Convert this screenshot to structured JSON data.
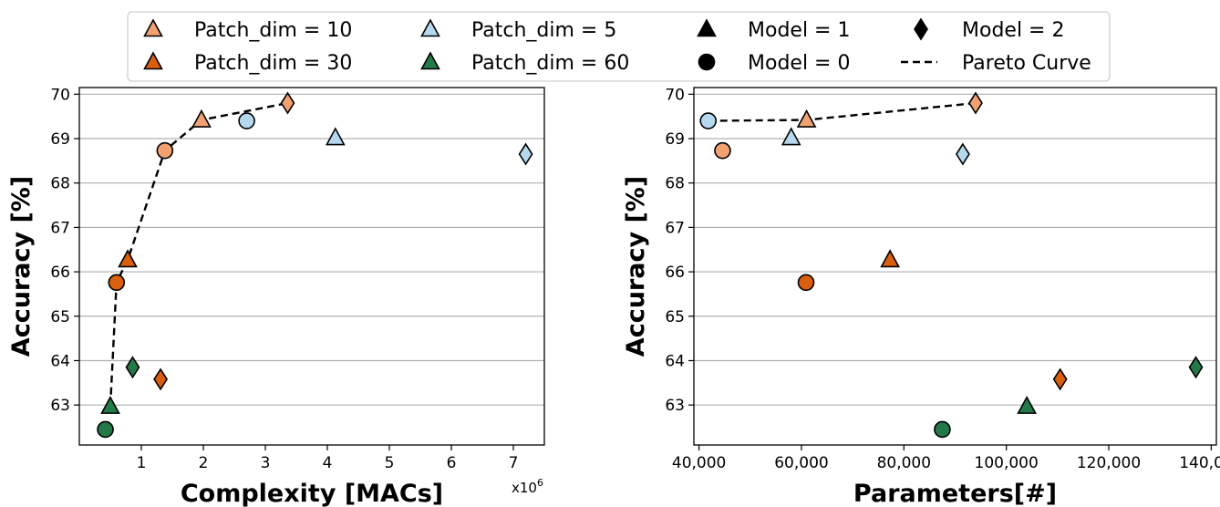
{
  "colors": {
    "patch_dim_10": "#f2a272",
    "patch_dim_30": "#d95f0e",
    "patch_dim_5": "#b5d8ee",
    "patch_dim_60": "#237a48",
    "grid": "#b0b0b0",
    "pareto": "#000000"
  },
  "legend": {
    "items": [
      {
        "label": "Patch_dim = 10",
        "marker": "triangle",
        "color_key": "patch_dim_10"
      },
      {
        "label": "Patch_dim = 30",
        "marker": "triangle",
        "color_key": "patch_dim_30"
      },
      {
        "label": "Patch_dim = 5",
        "marker": "triangle",
        "color_key": "patch_dim_5"
      },
      {
        "label": "Patch_dim = 60",
        "marker": "triangle",
        "color_key": "patch_dim_60"
      },
      {
        "label": "Model = 1",
        "marker": "triangle",
        "color_key": "black"
      },
      {
        "label": "Model = 0",
        "marker": "circle",
        "color_key": "black"
      },
      {
        "label": "Model = 2",
        "marker": "diamond",
        "color_key": "black"
      },
      {
        "label": "Pareto Curve",
        "marker": "dashed-line",
        "color_key": "pareto"
      }
    ]
  },
  "chart_data": [
    {
      "type": "scatter",
      "xlabel": "Complexity [MACs]",
      "ylabel": "Accuracy [%]",
      "x_multiplier_label": "x10",
      "x_multiplier_exp": "6",
      "xlim": [
        0.0,
        7.5
      ],
      "ylim": [
        62.1,
        70.15
      ],
      "x_ticks": [
        1,
        2,
        3,
        4,
        5,
        6,
        7
      ],
      "x_tick_labels": [
        "1",
        "2",
        "3",
        "4",
        "5",
        "6",
        "7"
      ],
      "y_ticks": [
        63,
        64,
        65,
        66,
        67,
        68,
        69,
        70
      ],
      "y_tick_labels": [
        "63",
        "64",
        "65",
        "66",
        "67",
        "68",
        "69",
        "70"
      ],
      "grid": "horizontal",
      "points": [
        {
          "x": 0.42,
          "y": 62.45,
          "patch_dim": 60,
          "model": 0
        },
        {
          "x": 0.5,
          "y": 62.97,
          "patch_dim": 60,
          "model": 1
        },
        {
          "x": 0.86,
          "y": 63.85,
          "patch_dim": 60,
          "model": 2
        },
        {
          "x": 1.31,
          "y": 63.58,
          "patch_dim": 30,
          "model": 2
        },
        {
          "x": 0.6,
          "y": 65.76,
          "patch_dim": 30,
          "model": 0
        },
        {
          "x": 0.78,
          "y": 66.27,
          "patch_dim": 30,
          "model": 1
        },
        {
          "x": 1.38,
          "y": 68.73,
          "patch_dim": 10,
          "model": 0
        },
        {
          "x": 1.97,
          "y": 69.42,
          "patch_dim": 10,
          "model": 1
        },
        {
          "x": 3.36,
          "y": 69.8,
          "patch_dim": 10,
          "model": 2
        },
        {
          "x": 2.7,
          "y": 69.4,
          "patch_dim": 5,
          "model": 0
        },
        {
          "x": 4.13,
          "y": 69.02,
          "patch_dim": 5,
          "model": 1
        },
        {
          "x": 7.2,
          "y": 68.65,
          "patch_dim": 5,
          "model": 2
        }
      ],
      "pareto": {
        "name": "Pareto Curve",
        "x": [
          0.5,
          0.6,
          0.78,
          1.38,
          1.97,
          3.36
        ],
        "y": [
          62.97,
          65.76,
          66.27,
          68.73,
          69.42,
          69.8
        ]
      }
    },
    {
      "type": "scatter",
      "xlabel": "Parameters[#]",
      "ylabel": "Accuracy [%]",
      "xlim": [
        39000,
        141000
      ],
      "ylim": [
        62.1,
        70.15
      ],
      "x_ticks": [
        40000,
        60000,
        80000,
        100000,
        120000,
        140000
      ],
      "x_tick_labels": [
        "40,000",
        "60,000",
        "80,000",
        "100,000",
        "120,000",
        "140,000"
      ],
      "y_ticks": [
        63,
        64,
        65,
        66,
        67,
        68,
        69,
        70
      ],
      "y_tick_labels": [
        "63",
        "64",
        "65",
        "66",
        "67",
        "68",
        "69",
        "70"
      ],
      "grid": "horizontal",
      "points": [
        {
          "x": 41800,
          "y": 69.4,
          "patch_dim": 5,
          "model": 0
        },
        {
          "x": 44600,
          "y": 68.73,
          "patch_dim": 10,
          "model": 0
        },
        {
          "x": 58000,
          "y": 69.02,
          "patch_dim": 5,
          "model": 1
        },
        {
          "x": 61000,
          "y": 69.42,
          "patch_dim": 10,
          "model": 1
        },
        {
          "x": 91500,
          "y": 68.65,
          "patch_dim": 5,
          "model": 2
        },
        {
          "x": 94000,
          "y": 69.8,
          "patch_dim": 10,
          "model": 2
        },
        {
          "x": 60900,
          "y": 65.76,
          "patch_dim": 30,
          "model": 0
        },
        {
          "x": 77300,
          "y": 66.27,
          "patch_dim": 30,
          "model": 1
        },
        {
          "x": 110500,
          "y": 63.58,
          "patch_dim": 30,
          "model": 2
        },
        {
          "x": 87500,
          "y": 62.45,
          "patch_dim": 60,
          "model": 0
        },
        {
          "x": 104000,
          "y": 62.97,
          "patch_dim": 60,
          "model": 1
        },
        {
          "x": 137000,
          "y": 63.85,
          "patch_dim": 60,
          "model": 2
        }
      ],
      "pareto": {
        "name": "Pareto Curve",
        "x": [
          41800,
          61000,
          94000
        ],
        "y": [
          69.4,
          69.42,
          69.8
        ]
      }
    }
  ]
}
